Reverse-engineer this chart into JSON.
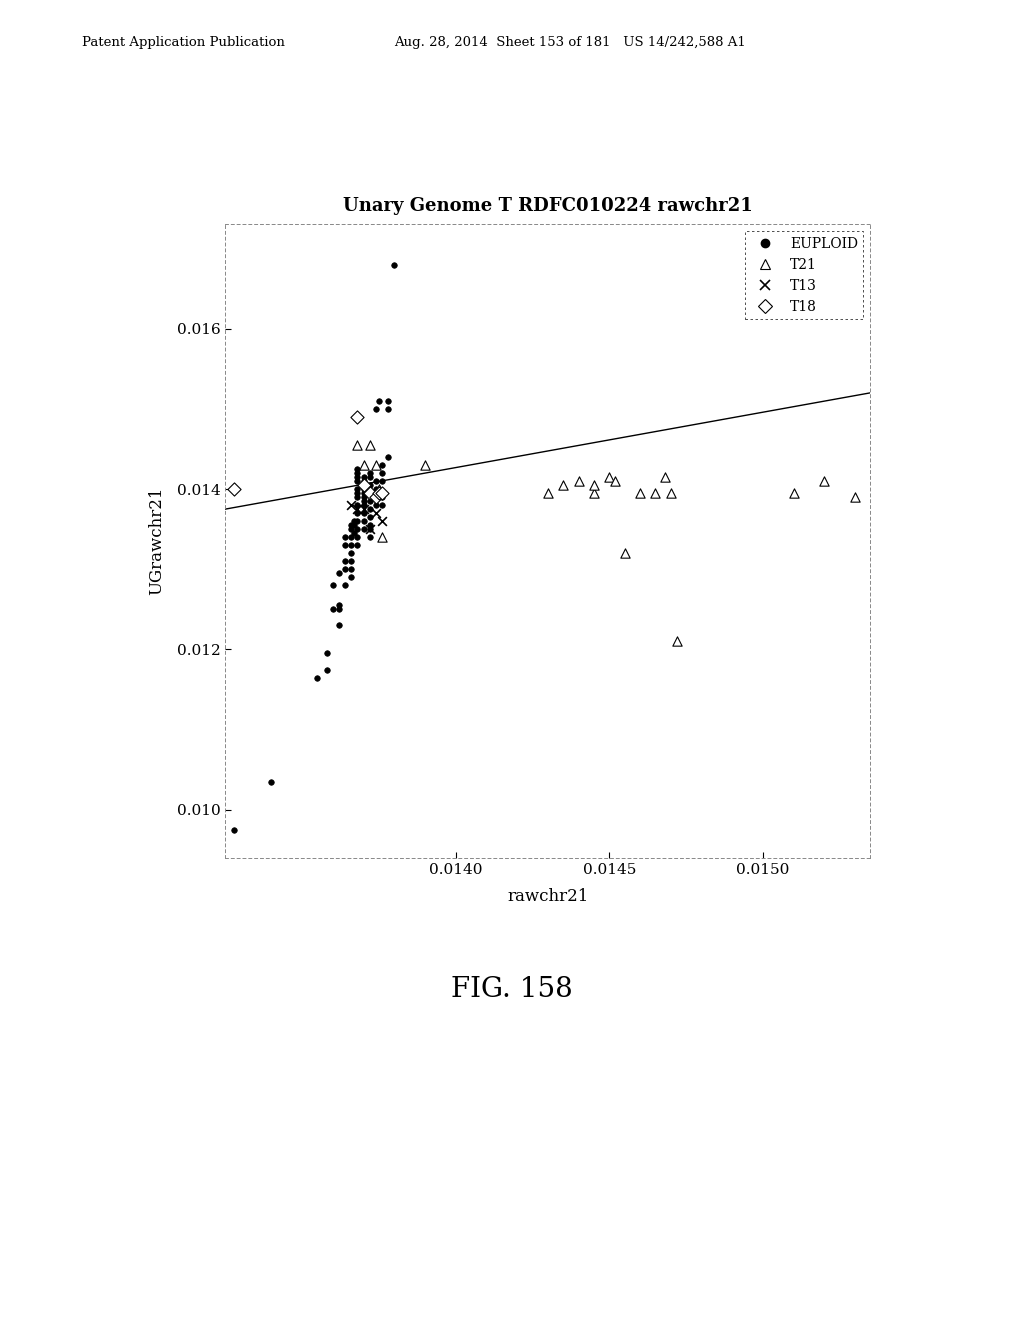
{
  "title": "Unary Genome T RDFC010224 rawchr21",
  "xlabel": "rawchr21",
  "ylabel": "UGrawchr21",
  "xlim": [
    0.01325,
    0.01535
  ],
  "ylim": [
    0.0094,
    0.0173
  ],
  "xticks": [
    0.014,
    0.0145,
    0.015
  ],
  "yticks": [
    0.01,
    0.012,
    0.014,
    0.016
  ],
  "regression_line": {
    "x_start": 0.01325,
    "x_end": 0.01535,
    "y_start": 0.01375,
    "y_end": 0.0152
  },
  "euploid": [
    [
      0.01328,
      0.00975
    ],
    [
      0.0134,
      0.01035
    ],
    [
      0.01355,
      0.01165
    ],
    [
      0.01358,
      0.01175
    ],
    [
      0.01358,
      0.01195
    ],
    [
      0.0136,
      0.0125
    ],
    [
      0.0136,
      0.0128
    ],
    [
      0.01362,
      0.0123
    ],
    [
      0.01362,
      0.0125
    ],
    [
      0.01362,
      0.01255
    ],
    [
      0.01362,
      0.01295
    ],
    [
      0.01364,
      0.0128
    ],
    [
      0.01364,
      0.013
    ],
    [
      0.01364,
      0.0131
    ],
    [
      0.01364,
      0.0133
    ],
    [
      0.01364,
      0.0134
    ],
    [
      0.01366,
      0.0129
    ],
    [
      0.01366,
      0.013
    ],
    [
      0.01366,
      0.0131
    ],
    [
      0.01366,
      0.0132
    ],
    [
      0.01366,
      0.0133
    ],
    [
      0.01366,
      0.0134
    ],
    [
      0.01366,
      0.0135
    ],
    [
      0.01366,
      0.01355
    ],
    [
      0.01367,
      0.01345
    ],
    [
      0.01367,
      0.01355
    ],
    [
      0.01367,
      0.0136
    ],
    [
      0.01368,
      0.0133
    ],
    [
      0.01368,
      0.0134
    ],
    [
      0.01368,
      0.0135
    ],
    [
      0.01368,
      0.0136
    ],
    [
      0.01368,
      0.0137
    ],
    [
      0.01368,
      0.0138
    ],
    [
      0.01368,
      0.0139
    ],
    [
      0.01368,
      0.01395
    ],
    [
      0.01368,
      0.014
    ],
    [
      0.01368,
      0.0141
    ],
    [
      0.01368,
      0.01415
    ],
    [
      0.01368,
      0.0142
    ],
    [
      0.01368,
      0.01425
    ],
    [
      0.0137,
      0.0135
    ],
    [
      0.0137,
      0.0136
    ],
    [
      0.0137,
      0.0137
    ],
    [
      0.0137,
      0.0138
    ],
    [
      0.0137,
      0.01385
    ],
    [
      0.0137,
      0.0139
    ],
    [
      0.0137,
      0.01395
    ],
    [
      0.0137,
      0.014
    ],
    [
      0.0137,
      0.0141
    ],
    [
      0.0137,
      0.01415
    ],
    [
      0.01372,
      0.0134
    ],
    [
      0.01372,
      0.0135
    ],
    [
      0.01372,
      0.01355
    ],
    [
      0.01372,
      0.01365
    ],
    [
      0.01372,
      0.01375
    ],
    [
      0.01372,
      0.01385
    ],
    [
      0.01372,
      0.01395
    ],
    [
      0.01372,
      0.01405
    ],
    [
      0.01372,
      0.01415
    ],
    [
      0.01372,
      0.0142
    ],
    [
      0.01374,
      0.0138
    ],
    [
      0.01374,
      0.0139
    ],
    [
      0.01374,
      0.01395
    ],
    [
      0.01374,
      0.014
    ],
    [
      0.01374,
      0.0141
    ],
    [
      0.01374,
      0.015
    ],
    [
      0.01375,
      0.0151
    ],
    [
      0.01376,
      0.0138
    ],
    [
      0.01376,
      0.0139
    ],
    [
      0.01376,
      0.0141
    ],
    [
      0.01376,
      0.0142
    ],
    [
      0.01376,
      0.0143
    ],
    [
      0.01378,
      0.0144
    ],
    [
      0.01378,
      0.015
    ],
    [
      0.01378,
      0.0151
    ],
    [
      0.0138,
      0.0168
    ]
  ],
  "T21": [
    [
      0.01368,
      0.01455
    ],
    [
      0.0137,
      0.0143
    ],
    [
      0.01372,
      0.01455
    ],
    [
      0.01374,
      0.0143
    ],
    [
      0.01375,
      0.014
    ],
    [
      0.01376,
      0.0134
    ],
    [
      0.0139,
      0.0143
    ],
    [
      0.0143,
      0.01395
    ],
    [
      0.01435,
      0.01405
    ],
    [
      0.0144,
      0.0141
    ],
    [
      0.01445,
      0.01395
    ],
    [
      0.01445,
      0.01405
    ],
    [
      0.0145,
      0.01415
    ],
    [
      0.01452,
      0.0141
    ],
    [
      0.01455,
      0.0132
    ],
    [
      0.0146,
      0.01395
    ],
    [
      0.01465,
      0.01395
    ],
    [
      0.01468,
      0.01415
    ],
    [
      0.0147,
      0.01395
    ],
    [
      0.01472,
      0.0121
    ],
    [
      0.0151,
      0.01395
    ],
    [
      0.0152,
      0.0141
    ],
    [
      0.0153,
      0.0139
    ]
  ],
  "T13": [
    [
      0.01366,
      0.0138
    ],
    [
      0.01368,
      0.01375
    ],
    [
      0.0137,
      0.01375
    ],
    [
      0.01372,
      0.0135
    ],
    [
      0.01374,
      0.0137
    ],
    [
      0.01376,
      0.0136
    ]
  ],
  "T18": [
    [
      0.01328,
      0.014
    ],
    [
      0.01368,
      0.0149
    ],
    [
      0.0137,
      0.01405
    ],
    [
      0.01372,
      0.01395
    ],
    [
      0.01374,
      0.0139
    ],
    [
      0.01375,
      0.01395
    ],
    [
      0.01376,
      0.01395
    ]
  ],
  "background_color": "#ffffff",
  "text_color": "#000000",
  "fig_caption": "FIG. 158"
}
